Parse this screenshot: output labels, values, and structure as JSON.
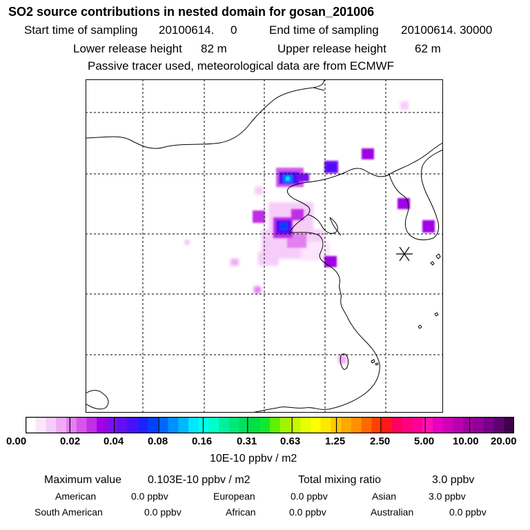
{
  "header": {
    "title": "SO2 source contributions in nested domain for gosan_201006",
    "start_label": "Start time of sampling",
    "start_value": "20100614.     0",
    "end_label": "End time of sampling",
    "end_value": "20100614. 30000",
    "lower_label": "Lower release height",
    "lower_value": "82 m",
    "upper_label": "Upper release height",
    "upper_value": "62 m",
    "tracer_note": "Passive tracer used, meteorological data are from ECMWF"
  },
  "map": {
    "receptor_marker": "asterisk-icon",
    "colors": {
      "frame": "#000000",
      "grid": "#000000",
      "coast": "#000000"
    }
  },
  "colorbar": {
    "ticks": [
      "0.00",
      "0.02",
      "0.04",
      "0.08",
      "0.16",
      "0.31",
      "0.63",
      "1.25",
      "2.50",
      "5.00",
      "10.00",
      "20.00"
    ],
    "colors": [
      "#ffffff",
      "#fbe6fc",
      "#f6ccf9",
      "#f0aaf5",
      "#e47ff0",
      "#d656ec",
      "#c12ee8",
      "#a000e6",
      "#7a10ee",
      "#6010f5",
      "#4810fb",
      "#2020ff",
      "#0040ff",
      "#0066ff",
      "#0090ff",
      "#00b8ff",
      "#00e8ff",
      "#00ffe8",
      "#00ffc8",
      "#00f0a0",
      "#00e878",
      "#00e060",
      "#00e040",
      "#10e830",
      "#60f000",
      "#a0f400",
      "#c8f800",
      "#e8ff00",
      "#ffff00",
      "#ffe800",
      "#ffc800",
      "#ffa800",
      "#ff9000",
      "#ff6800",
      "#ff4000",
      "#ff1818",
      "#ff0060",
      "#ff0080",
      "#ff0098",
      "#ff10b0",
      "#e800c0",
      "#d000b8",
      "#b800b0",
      "#a000a0",
      "#900098",
      "#780088",
      "#600070",
      "#40004c"
    ],
    "units": "10E-10 ppbv / m2"
  },
  "summary": {
    "max_label": "Maximum value",
    "max_value": "0.103E-10 ppbv / m2",
    "total_label": "Total mixing ratio",
    "total_value": "3.0 ppbv",
    "regions": [
      {
        "name": "American",
        "value": "0.0 ppbv"
      },
      {
        "name": "European",
        "value": "0.0 ppbv"
      },
      {
        "name": "Asian",
        "value": "3.0 ppbv"
      },
      {
        "name": "South American",
        "value": "0.0 ppbv"
      },
      {
        "name": "African",
        "value": "0.0 ppbv"
      },
      {
        "name": "Australian",
        "value": "0.0 ppbv"
      }
    ]
  }
}
